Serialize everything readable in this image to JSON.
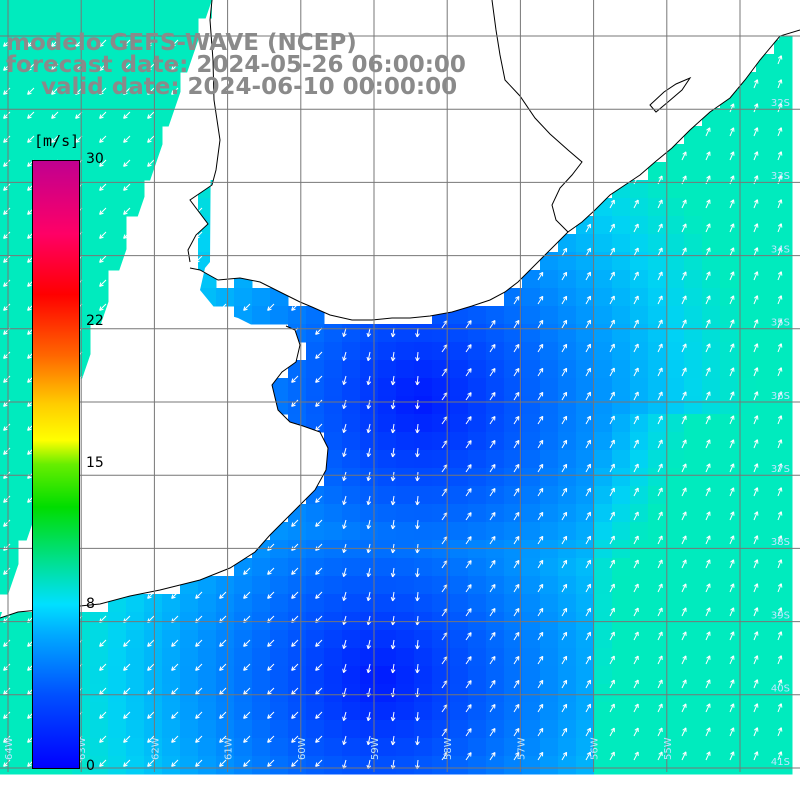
{
  "title": {
    "line1": "modelo GEFS-WAVE (NCEP)",
    "line2": "forecast date: 2024-05-26 06:00:00",
    "line3": "valid date: 2024-06-10 00:00:00"
  },
  "colorbar": {
    "unit": "[m/s]",
    "ticks": [
      {
        "label": "30",
        "value": 30
      },
      {
        "label": "22",
        "value": 22
      },
      {
        "label": "15",
        "value": 15
      },
      {
        "label": "8",
        "value": 8
      },
      {
        "label": "0",
        "value": 0
      }
    ],
    "min": 0,
    "max": 30
  },
  "map": {
    "lat_labels": [
      "32S",
      "33S",
      "34S",
      "35S",
      "36S",
      "37S",
      "38S",
      "39S",
      "40S",
      "41S"
    ],
    "lon_labels": [
      "64W",
      "63W",
      "62W",
      "61W",
      "60W",
      "59W",
      "58W",
      "57W",
      "56W",
      "55W"
    ],
    "colors": {
      "land": "#ffffff",
      "coast": "#000000",
      "grid": "#777777",
      "arrow": "#ffffff",
      "title": "#8a8a8a"
    }
  }
}
